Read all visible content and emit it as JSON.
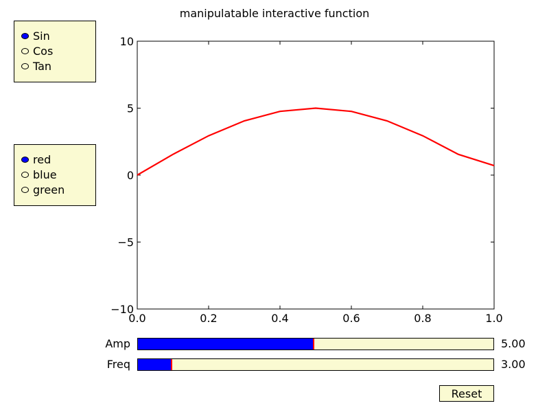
{
  "title": "manipulatable interactive function",
  "function_selector": {
    "options": [
      "Sin",
      "Cos",
      "Tan"
    ],
    "selected": "Sin"
  },
  "color_selector": {
    "options": [
      "red",
      "blue",
      "green"
    ],
    "selected": "red"
  },
  "sliders": {
    "amp": {
      "label": "Amp",
      "value_text": "5.00",
      "fraction": 0.495
    },
    "freq": {
      "label": "Freq",
      "value_text": "3.00",
      "fraction": 0.095
    }
  },
  "reset_label": "Reset",
  "colors": {
    "panel_bg": "#fafad2",
    "slider_fill": "#0000ff",
    "slider_marker": "#ff0000",
    "line": "#ff0000",
    "radio_on": "#0000ff"
  },
  "chart_data": {
    "type": "line",
    "title": "manipulatable interactive function",
    "xlabel": "",
    "ylabel": "",
    "xlim": [
      0.0,
      1.0
    ],
    "ylim": [
      -10,
      10
    ],
    "x_ticks": [
      "0.0",
      "0.2",
      "0.4",
      "0.6",
      "0.8",
      "1.0"
    ],
    "y_ticks": [
      "10",
      "5",
      "0",
      "−5",
      "−10"
    ],
    "series": [
      {
        "color": "#ff0000",
        "x": [
          0.0,
          0.1,
          0.2,
          0.3,
          0.4,
          0.5,
          0.6,
          0.7,
          0.8,
          0.9,
          1.0
        ],
        "y": [
          0.0,
          1.55,
          2.94,
          4.05,
          4.76,
          5.0,
          4.76,
          4.05,
          2.94,
          1.55,
          0.71
        ]
      }
    ]
  }
}
